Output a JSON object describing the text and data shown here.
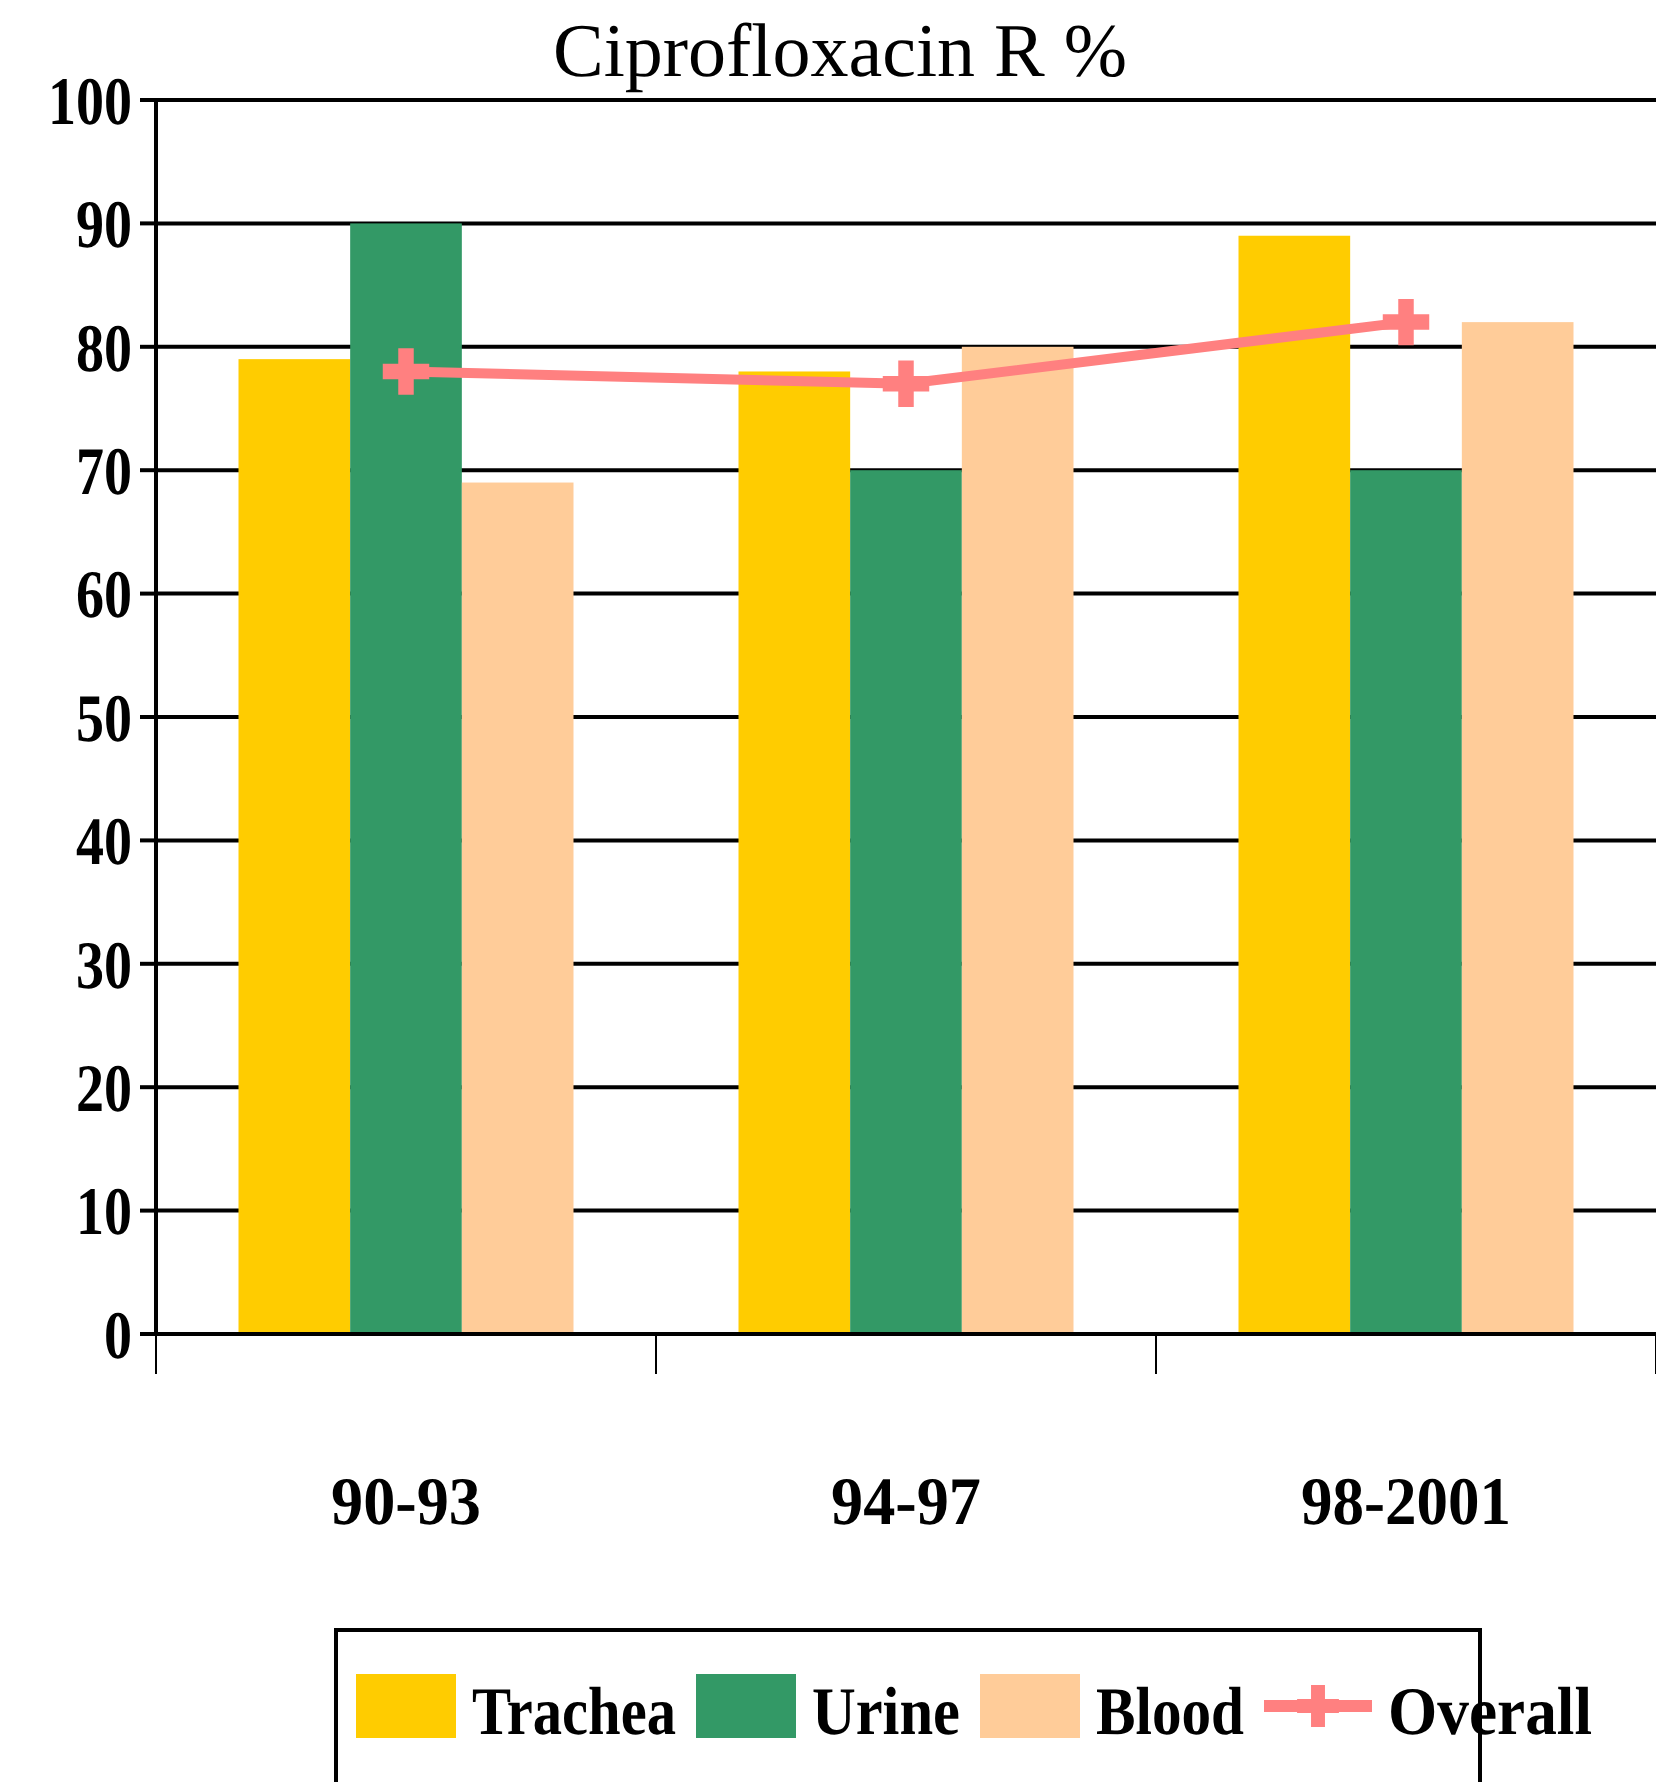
{
  "chart_data": {
    "type": "bar",
    "title": "Ciprofloxacin R %",
    "categories": [
      "90-93",
      "94-97",
      "98-2001"
    ],
    "series": [
      {
        "name": "Trachea",
        "color": "#ffcc00",
        "values": [
          79,
          78,
          89
        ]
      },
      {
        "name": "Urine",
        "color": "#339966",
        "values": [
          90,
          70,
          70
        ]
      },
      {
        "name": "Blood",
        "color": "#ffcc99",
        "values": [
          69,
          80,
          82
        ]
      },
      {
        "name": "Overall",
        "type": "line",
        "color": "#ff8080",
        "marker": "cross",
        "values": [
          78,
          77,
          82
        ]
      }
    ],
    "ylim": [
      0,
      100
    ],
    "yticks": [
      0,
      10,
      20,
      30,
      40,
      50,
      60,
      70,
      80,
      90,
      100
    ],
    "grid": "y",
    "legend": "bottom"
  }
}
